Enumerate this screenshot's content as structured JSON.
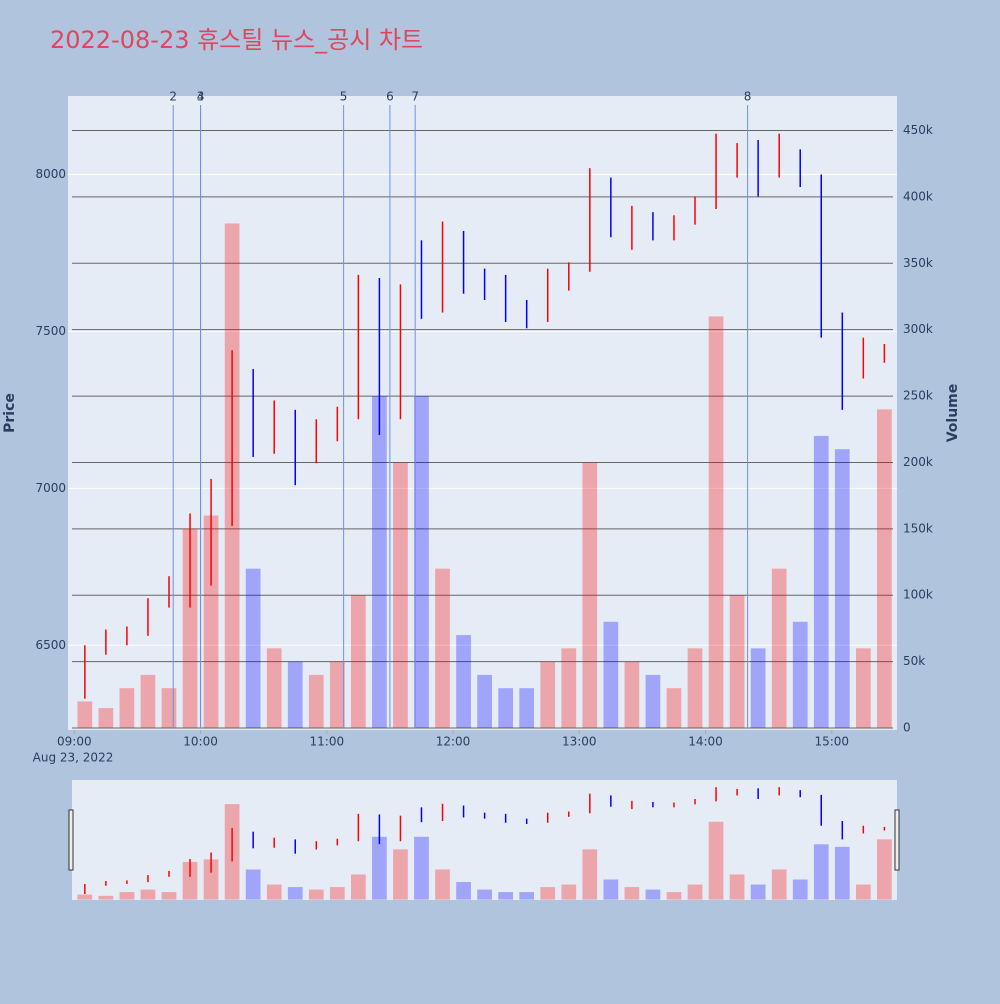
{
  "chart_data": {
    "type": "candlestick",
    "title": "2022-08-23 휴스틸 뉴스_공시 차트",
    "y_label": "Price",
    "y2_label": "Volume",
    "x_sublabel": "Aug 23, 2022",
    "up_color": "#ff0000",
    "down_color": "#0000ff",
    "news_color": "#6f8fe6",
    "xlim": [
      "08:57",
      "15:31"
    ],
    "xticks": [
      "09:00",
      "10:00",
      "11:00",
      "12:00",
      "13:00",
      "14:00",
      "15:00"
    ],
    "ylim": [
      6230,
      8250
    ],
    "yticks": [
      6500,
      7000,
      7500,
      8000
    ],
    "y2lim": [
      -1500,
      476000
    ],
    "y2ticks": [
      0,
      {
        "value": 50000,
        "label": "50k"
      },
      {
        "value": 100000,
        "label": "100k"
      },
      {
        "value": 150000,
        "label": "150k"
      },
      {
        "value": 200000,
        "label": "200k"
      },
      {
        "value": 250000,
        "label": "250k"
      },
      {
        "value": 300000,
        "label": "300k"
      },
      {
        "value": 350000,
        "label": "350k"
      },
      {
        "value": 400000,
        "label": "400k"
      },
      {
        "value": 450000,
        "label": "450k"
      }
    ],
    "x": [
      "09:00",
      "09:10",
      "09:20",
      "09:30",
      "09:40",
      "09:50",
      "10:00",
      "10:10",
      "10:20",
      "10:30",
      "10:40",
      "10:50",
      "11:00",
      "11:10",
      "11:20",
      "11:30",
      "11:40",
      "11:50",
      "12:00",
      "12:10",
      "12:20",
      "12:30",
      "12:40",
      "12:50",
      "13:00",
      "13:10",
      "13:20",
      "13:30",
      "13:40",
      "13:50",
      "14:00",
      "14:10",
      "14:20",
      "14:30",
      "14:40",
      "14:50",
      "15:00",
      "15:10",
      "15:20"
    ],
    "open": [
      6400,
      6480,
      6520,
      6540,
      6630,
      6700,
      6700,
      6900,
      7350,
      7200,
      7230,
      7100,
      7180,
      7230,
      7600,
      7250,
      7600,
      7580,
      7800,
      7650,
      7640,
      7560,
      7540,
      7660,
      7700,
      7960,
      7840,
      7870,
      7820,
      7850,
      7900,
      8050,
      8080,
      8000,
      8060,
      7990,
      7520,
      7380,
      7430
    ],
    "high": [
      6500,
      6550,
      6560,
      6650,
      6720,
      6920,
      7030,
      7440,
      7380,
      7280,
      7250,
      7220,
      7260,
      7680,
      7670,
      7650,
      7790,
      7850,
      7820,
      7700,
      7680,
      7600,
      7700,
      7720,
      8020,
      7990,
      7900,
      7880,
      7870,
      7930,
      8130,
      8100,
      8110,
      8130,
      8080,
      8000,
      7560,
      7480,
      7460
    ],
    "low": [
      6330,
      6470,
      6500,
      6530,
      6620,
      6620,
      6690,
      6880,
      7100,
      7110,
      7010,
      7080,
      7150,
      7220,
      7170,
      7220,
      7540,
      7560,
      7620,
      7600,
      7530,
      7510,
      7530,
      7630,
      7690,
      7800,
      7760,
      7790,
      7790,
      7840,
      7890,
      7990,
      7930,
      7990,
      7960,
      7480,
      7250,
      7350,
      7400
    ],
    "close": [
      6480,
      6520,
      6540,
      6630,
      6700,
      6700,
      6900,
      7350,
      7200,
      7230,
      7100,
      7180,
      7230,
      7600,
      7250,
      7600,
      7580,
      7800,
      7650,
      7640,
      7560,
      7540,
      7660,
      7700,
      7960,
      7840,
      7870,
      7820,
      7850,
      7900,
      8050,
      8080,
      8000,
      8060,
      7990,
      7520,
      7380,
      7430,
      7440
    ],
    "volume": [
      20000,
      15000,
      30000,
      40000,
      30000,
      150000,
      160000,
      380000,
      120000,
      60000,
      50000,
      40000,
      50000,
      100000,
      250000,
      200000,
      250000,
      120000,
      70000,
      40000,
      30000,
      30000,
      50000,
      60000,
      200000,
      80000,
      50000,
      40000,
      30000,
      60000,
      310000,
      100000,
      60000,
      120000,
      80000,
      220000,
      210000,
      60000,
      240000
    ],
    "annotations": [
      {
        "x": "09:47",
        "label": "2"
      },
      {
        "x": "10:00",
        "label": "3"
      },
      {
        "x": "10:00",
        "label": "4"
      },
      {
        "x": "11:08",
        "label": "5"
      },
      {
        "x": "11:30",
        "label": "6"
      },
      {
        "x": "11:42",
        "label": "7"
      },
      {
        "x": "14:20",
        "label": "8"
      }
    ]
  }
}
